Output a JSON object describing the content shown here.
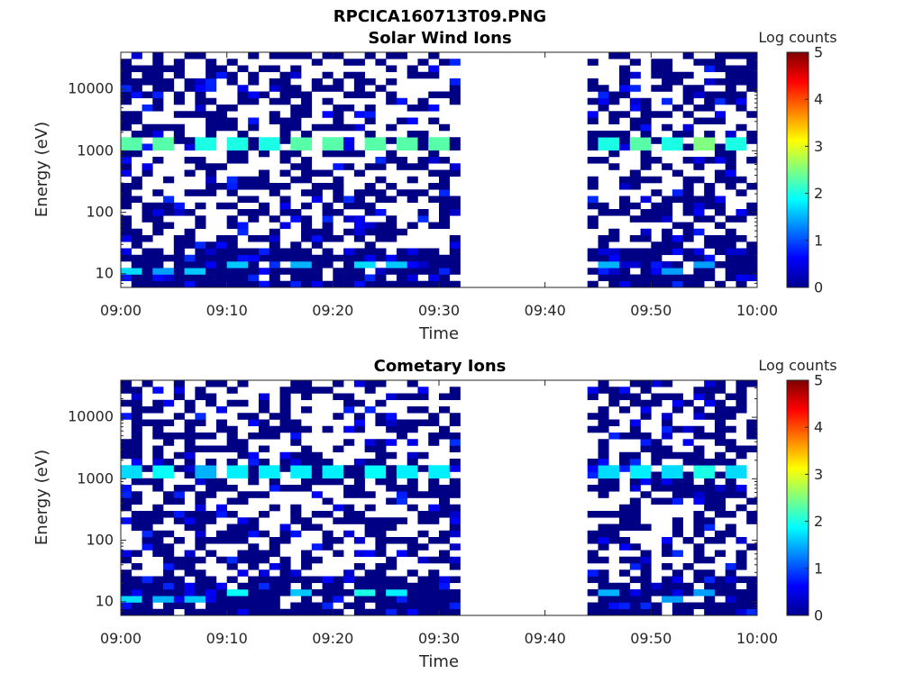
{
  "figure": {
    "title": "RPCICA160713T09.PNG",
    "background": "#ffffff"
  },
  "chart_data": [
    {
      "type": "heatmap",
      "title": "Solar Wind Ions",
      "xlabel": "Time",
      "ylabel": "Energy (eV)",
      "colorbar_label": "Log counts",
      "xlim": [
        "09:00",
        "10:00"
      ],
      "x_ticks": [
        "09:00",
        "09:10",
        "09:20",
        "09:30",
        "09:40",
        "09:50",
        "10:00"
      ],
      "y_scale": "log",
      "ylim": [
        6,
        40000
      ],
      "y_ticks": [
        "10",
        "100",
        "1000",
        "10000"
      ],
      "clim": [
        0,
        5
      ],
      "colorbar_ticks": [
        "0",
        "1",
        "2",
        "3",
        "4",
        "5"
      ],
      "colormap": "jet",
      "data_gap": [
        "09:32",
        "09:44"
      ],
      "time_bins": 60,
      "energy_bins": 36,
      "peaks": [
        {
          "time": "09:01",
          "energy_eV": 1300,
          "log_counts": 2.3
        },
        {
          "time": "09:04",
          "energy_eV": 1300,
          "log_counts": 2.3
        },
        {
          "time": "09:08",
          "energy_eV": 1300,
          "log_counts": 2.0
        },
        {
          "time": "09:11",
          "energy_eV": 1300,
          "log_counts": 2.0
        },
        {
          "time": "09:14",
          "energy_eV": 1300,
          "log_counts": 2.0
        },
        {
          "time": "09:17",
          "energy_eV": 1300,
          "log_counts": 2.3
        },
        {
          "time": "09:20",
          "energy_eV": 1300,
          "log_counts": 2.3
        },
        {
          "time": "09:24",
          "energy_eV": 1300,
          "log_counts": 2.3
        },
        {
          "time": "09:27",
          "energy_eV": 1300,
          "log_counts": 2.3
        },
        {
          "time": "09:30",
          "energy_eV": 1300,
          "log_counts": 2.3
        },
        {
          "time": "09:46",
          "energy_eV": 1300,
          "log_counts": 2.0
        },
        {
          "time": "09:49",
          "energy_eV": 1300,
          "log_counts": 2.3
        },
        {
          "time": "09:52",
          "energy_eV": 1300,
          "log_counts": 2.0
        },
        {
          "time": "09:55",
          "energy_eV": 1300,
          "log_counts": 2.5
        },
        {
          "time": "09:58",
          "energy_eV": 1300,
          "log_counts": 2.0
        },
        {
          "time": "09:01",
          "energy_eV": 12,
          "log_counts": 1.7
        },
        {
          "time": "09:04",
          "energy_eV": 12,
          "log_counts": 1.4
        },
        {
          "time": "09:07",
          "energy_eV": 12,
          "log_counts": 1.6
        },
        {
          "time": "09:11",
          "energy_eV": 14,
          "log_counts": 1.6
        },
        {
          "time": "09:17",
          "energy_eV": 14,
          "log_counts": 1.5
        },
        {
          "time": "09:23",
          "energy_eV": 14,
          "log_counts": 1.7
        },
        {
          "time": "09:26",
          "energy_eV": 14,
          "log_counts": 1.6
        },
        {
          "time": "09:46",
          "energy_eV": 14,
          "log_counts": 1.5
        },
        {
          "time": "09:52",
          "energy_eV": 12,
          "log_counts": 1.4
        },
        {
          "time": "09:55",
          "energy_eV": 14,
          "log_counts": 1.4
        }
      ]
    },
    {
      "type": "heatmap",
      "title": "Cometary Ions",
      "xlabel": "Time",
      "ylabel": "Energy (eV)",
      "colorbar_label": "Log counts",
      "xlim": [
        "09:00",
        "10:00"
      ],
      "x_ticks": [
        "09:00",
        "09:10",
        "09:20",
        "09:30",
        "09:40",
        "09:50",
        "10:00"
      ],
      "y_scale": "log",
      "ylim": [
        6,
        40000
      ],
      "y_ticks": [
        "10",
        "100",
        "1000",
        "10000"
      ],
      "clim": [
        0,
        5
      ],
      "colorbar_ticks": [
        "0",
        "1",
        "2",
        "3",
        "4",
        "5"
      ],
      "colormap": "jet",
      "data_gap": [
        "09:32",
        "09:44"
      ],
      "time_bins": 60,
      "energy_bins": 36,
      "peaks": [
        {
          "time": "09:01",
          "energy_eV": 1300,
          "log_counts": 1.7
        },
        {
          "time": "09:04",
          "energy_eV": 1300,
          "log_counts": 1.9
        },
        {
          "time": "09:08",
          "energy_eV": 1300,
          "log_counts": 1.5
        },
        {
          "time": "09:11",
          "energy_eV": 1300,
          "log_counts": 1.8
        },
        {
          "time": "09:14",
          "energy_eV": 1300,
          "log_counts": 1.8
        },
        {
          "time": "09:17",
          "energy_eV": 1300,
          "log_counts": 1.8
        },
        {
          "time": "09:20",
          "energy_eV": 1300,
          "log_counts": 1.8
        },
        {
          "time": "09:24",
          "energy_eV": 1300,
          "log_counts": 1.9
        },
        {
          "time": "09:27",
          "energy_eV": 1300,
          "log_counts": 1.8
        },
        {
          "time": "09:30",
          "energy_eV": 1300,
          "log_counts": 1.8
        },
        {
          "time": "09:46",
          "energy_eV": 1300,
          "log_counts": 1.7
        },
        {
          "time": "09:49",
          "energy_eV": 1300,
          "log_counts": 1.8
        },
        {
          "time": "09:52",
          "energy_eV": 1300,
          "log_counts": 1.7
        },
        {
          "time": "09:55",
          "energy_eV": 1300,
          "log_counts": 2.0
        },
        {
          "time": "09:58",
          "energy_eV": 1300,
          "log_counts": 1.7
        },
        {
          "time": "09:01",
          "energy_eV": 12,
          "log_counts": 1.7
        },
        {
          "time": "09:04",
          "energy_eV": 12,
          "log_counts": 1.5
        },
        {
          "time": "09:07",
          "energy_eV": 12,
          "log_counts": 1.6
        },
        {
          "time": "09:11",
          "energy_eV": 14,
          "log_counts": 1.9
        },
        {
          "time": "09:17",
          "energy_eV": 14,
          "log_counts": 1.6
        },
        {
          "time": "09:23",
          "energy_eV": 14,
          "log_counts": 2.0
        },
        {
          "time": "09:26",
          "energy_eV": 14,
          "log_counts": 1.8
        },
        {
          "time": "09:46",
          "energy_eV": 14,
          "log_counts": 1.5
        },
        {
          "time": "09:52",
          "energy_eV": 12,
          "log_counts": 1.4
        },
        {
          "time": "09:55",
          "energy_eV": 14,
          "log_counts": 1.4
        }
      ]
    }
  ]
}
